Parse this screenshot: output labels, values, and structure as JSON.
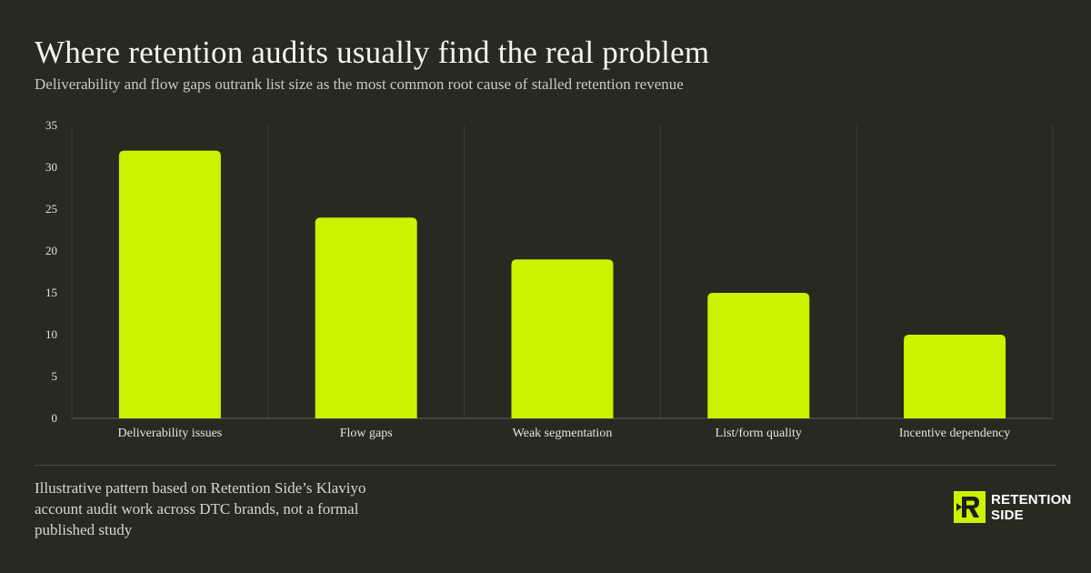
{
  "header": {
    "title": "Where retention audits usually find the real problem",
    "subtitle": "Deliverability and flow gaps outrank list size as the most common root cause of stalled retention revenue"
  },
  "footer": {
    "note": "Illustrative pattern based on Retention Side’s Klaviyo account audit work across DTC brands, not a formal published study",
    "brand_line1": "RETENTION",
    "brand_line2": "SIDE",
    "brand_icon": "retention-side-logo-icon"
  },
  "colors": {
    "background": "#272a21",
    "bar": "#cdf200",
    "gridline": "#3b3e34",
    "text": "#f1f1ea"
  },
  "chart_data": {
    "type": "bar",
    "categories": [
      "Deliverability issues",
      "Flow gaps",
      "Weak segmentation",
      "List/form quality",
      "Incentive dependency"
    ],
    "values": [
      32,
      24,
      19,
      15,
      10
    ],
    "ylim": [
      0,
      35
    ],
    "yticks": [
      0,
      5,
      10,
      15,
      20,
      25,
      30,
      35
    ],
    "title": "Where retention audits usually find the real problem",
    "subtitle": "Deliverability and flow gaps outrank list size as the most common root cause of stalled retention revenue",
    "xlabel": "",
    "ylabel": "",
    "grid": "vertical separators between categories",
    "legend": "none"
  }
}
